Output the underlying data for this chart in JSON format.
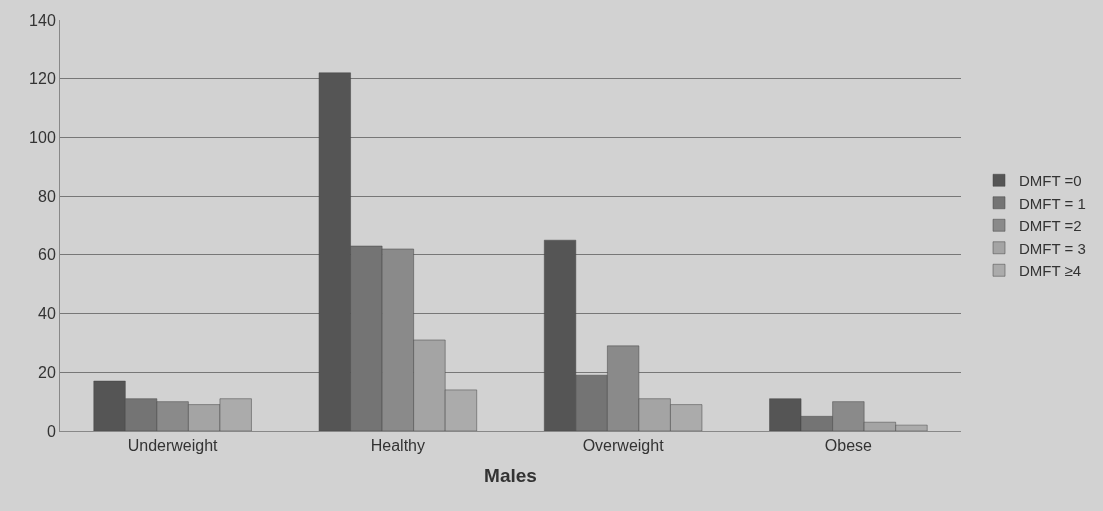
{
  "chart_data": {
    "type": "bar",
    "xlabel": "Males",
    "categories": [
      "Underweight",
      "Healthy",
      "Overweight",
      "Obese"
    ],
    "series": [
      {
        "name": "DMFT =0",
        "color": "#555555",
        "values": [
          17,
          122,
          65,
          11
        ]
      },
      {
        "name": "DMFT = 1",
        "color": "#747474",
        "values": [
          11,
          63,
          19,
          5
        ]
      },
      {
        "name": "DMFT =2",
        "color": "#8a8a8a",
        "values": [
          10,
          62,
          29,
          10
        ]
      },
      {
        "name": "DMFT = 3",
        "color": "#a4a4a4",
        "values": [
          9,
          31,
          11,
          3
        ]
      },
      {
        "name": "DMFT ≥4",
        "color": "#ababab",
        "values": [
          11,
          14,
          9,
          2
        ]
      }
    ],
    "ylim": [
      0,
      140
    ],
    "yticks": [
      0,
      20,
      40,
      60,
      80,
      100,
      120,
      140
    ],
    "grid": "y",
    "legend": "right"
  }
}
